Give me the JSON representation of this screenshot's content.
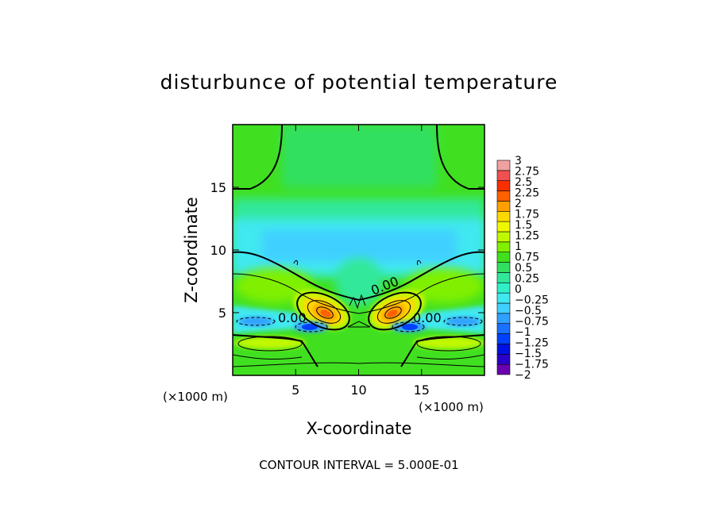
{
  "chart_data": {
    "type": "heatmap",
    "title": "disturbunce of potential temperature",
    "xlabel": "X-coordinate",
    "ylabel": "Z-coordinate",
    "x_unit": "(×1000 m)",
    "y_unit": "(×1000 m)",
    "xlim": [
      0,
      20
    ],
    "ylim": [
      0,
      20
    ],
    "x_ticks": [
      5,
      10,
      15
    ],
    "y_ticks": [
      5,
      10,
      15
    ],
    "contour_label": "0.00",
    "contour_interval_text": "CONTOUR INTERVAL = 5.000E-01",
    "colorbar": {
      "min": -2,
      "max": 3,
      "step": 0.25,
      "labels": [
        "3",
        "2.75",
        "2.5",
        "2.25",
        "2",
        "1.75",
        "1.5",
        "1.25",
        "1",
        "0.75",
        "0.5",
        "0.25",
        "0",
        "−0.25",
        "−0.5",
        "−0.75",
        "−1",
        "−1.25",
        "−1.5",
        "−1.75",
        "−2"
      ],
      "colors": [
        "#6a00b0",
        "#2a00c8",
        "#0010e0",
        "#0040ff",
        "#1a70ff",
        "#30a0ff",
        "#40d0ff",
        "#40e8f0",
        "#30f0c8",
        "#30e89a",
        "#30e060",
        "#40e020",
        "#80f000",
        "#c0f800",
        "#f0f800",
        "#ffd800",
        "#ffa000",
        "#ff6000",
        "#f83000",
        "#f05050",
        "#f0a0a0"
      ]
    }
  }
}
